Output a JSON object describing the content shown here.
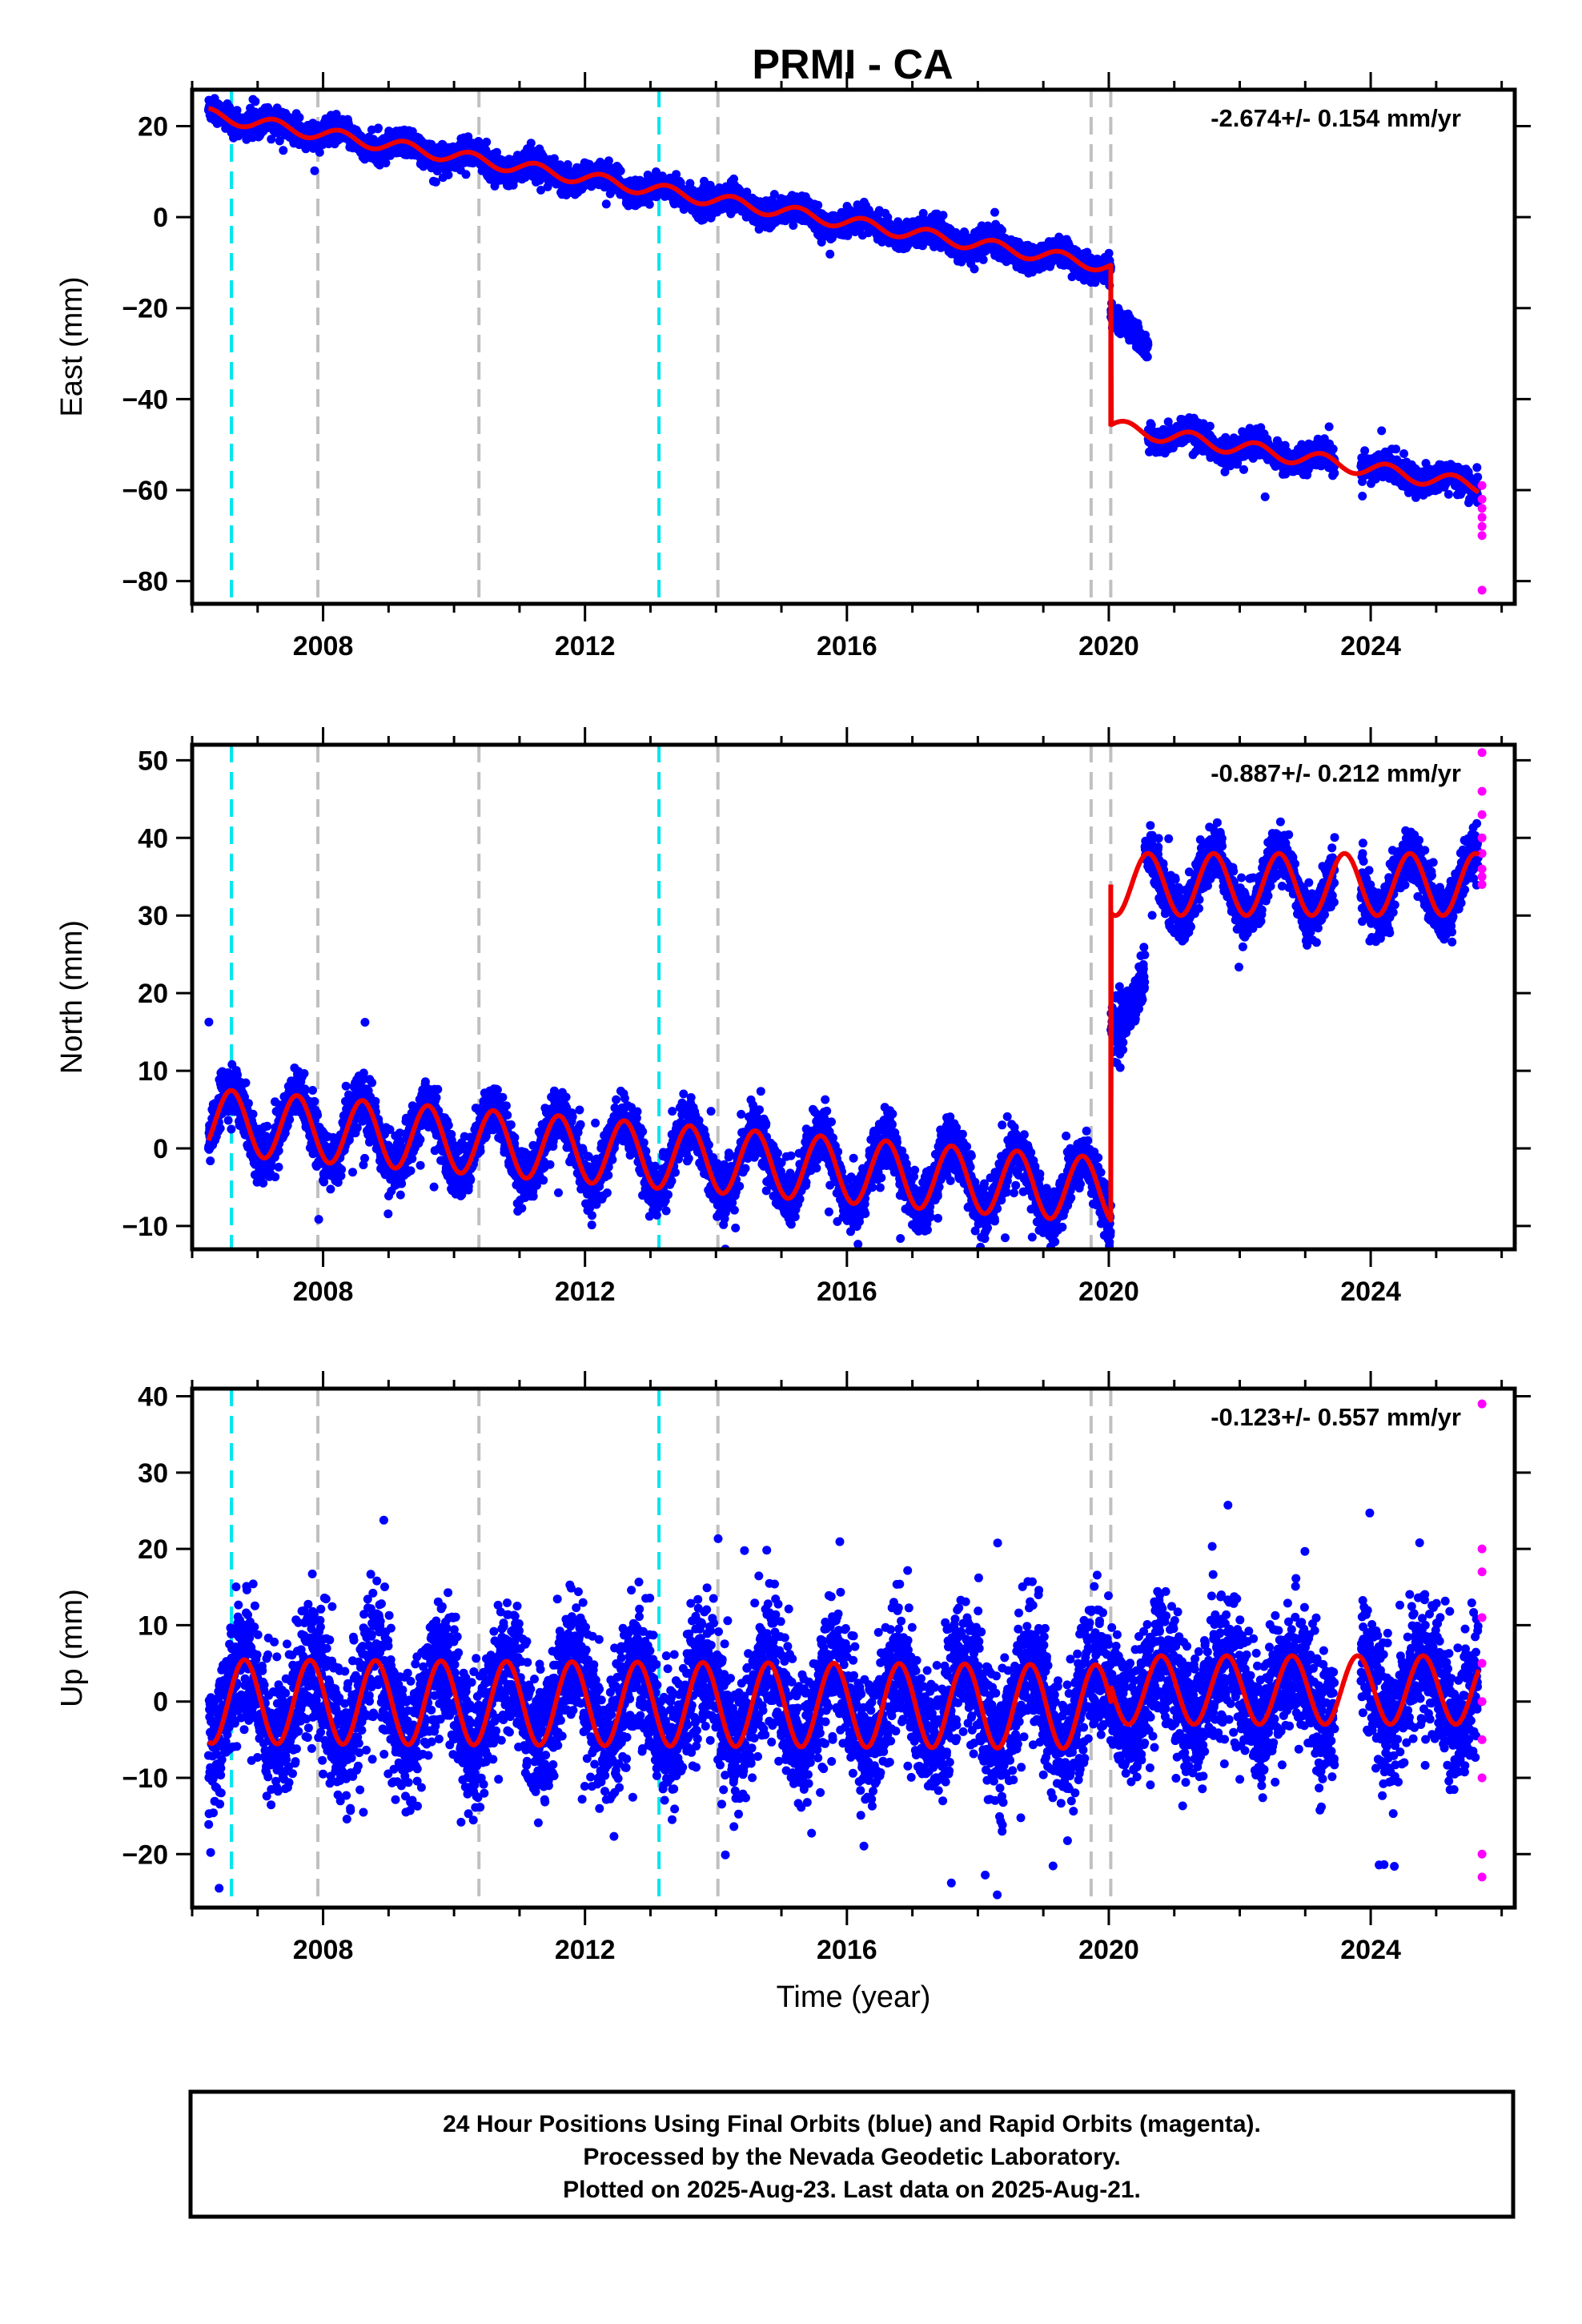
{
  "title": "PRMI - CA",
  "footer": {
    "line1": "24 Hour Positions Using Final Orbits (blue) and Rapid Orbits (magenta).",
    "line2": "Processed by the Nevada Geodetic Laboratory.",
    "line3": "Plotted on 2025-Aug-23. Last data on 2025-Aug-21."
  },
  "colors": {
    "final": "#0000ff",
    "rapid": "#ff00ff",
    "model": "#ee0000",
    "event_cyan": "#00e5ee",
    "event_gray": "#c0c0c0"
  },
  "chart_data": [
    {
      "type": "scatter",
      "component": "East",
      "ylabel": "East (mm)",
      "xlabel": "",
      "xlim": [
        2006.0,
        2026.2
      ],
      "ylim": [
        -85,
        28
      ],
      "xticks": [
        2008,
        2012,
        2016,
        2020,
        2024
      ],
      "yticks": [
        -80,
        -60,
        -40,
        -20,
        0,
        20
      ],
      "rate": "-2.674+/- 0.154 mm/yr",
      "grid": false,
      "cyan_events": [
        2006.6,
        2013.13
      ],
      "gray_events": [
        2007.92,
        2010.38,
        2014.03,
        2019.73,
        2020.03
      ],
      "data_start": 2006.25,
      "data_end": 2025.64,
      "gaps": [
        [
          2023.45,
          2023.85
        ]
      ],
      "segments": [
        {
          "t0": 2006.25,
          "t1": 2020.03,
          "y0": 22.5,
          "slope": -2.42,
          "amp": 1.4,
          "phase": 0.0
        },
        {
          "t0": 2020.03,
          "t1": 2025.64,
          "y0": -46.0,
          "slope": -2.35,
          "amp": 1.6,
          "phase": 0.0
        }
      ],
      "offsets": [
        {
          "t": 2020.03,
          "from": -11.0,
          "to": -46.0
        }
      ],
      "transients": [
        {
          "t0": 2020.03,
          "t1": 2020.6,
          "level": -21.0
        }
      ],
      "scatter_sd": 1.3,
      "model_name": "",
      "rapid": [
        -59,
        -62,
        -64,
        -66,
        -68,
        -70,
        -82
      ]
    },
    {
      "type": "scatter",
      "component": "North",
      "ylabel": "North (mm)",
      "xlabel": "",
      "xlim": [
        2006.0,
        2026.2
      ],
      "ylim": [
        -13,
        52
      ],
      "xticks": [
        2008,
        2012,
        2016,
        2020,
        2024
      ],
      "yticks": [
        -10,
        0,
        10,
        20,
        30,
        40,
        50
      ],
      "rate": "-0.887+/- 0.212 mm/yr",
      "grid": false,
      "cyan_events": [
        2006.6,
        2013.13
      ],
      "gray_events": [
        2007.92,
        2010.38,
        2014.03,
        2019.73,
        2020.03
      ],
      "data_start": 2006.25,
      "data_end": 2025.64,
      "gaps": [
        [
          2023.45,
          2023.85
        ]
      ],
      "segments": [
        {
          "t0": 2006.25,
          "t1": 2020.03,
          "y0": 3.5,
          "slope": -0.65,
          "amp": 4.2,
          "phase": 0.35
        },
        {
          "t0": 2020.03,
          "t1": 2025.64,
          "y0": 34.0,
          "slope": 0.0,
          "amp": 4.0,
          "phase": 0.35
        }
      ],
      "offsets": [
        {
          "t": 2020.03,
          "from": -6.0,
          "to": 34.0
        }
      ],
      "transients": [
        {
          "t0": 2020.03,
          "t1": 2020.55,
          "level": 15.0
        }
      ],
      "scatter_sd": 1.6,
      "model_name": "",
      "rapid": [
        51,
        46,
        43,
        40,
        38,
        36,
        35,
        34
      ]
    },
    {
      "type": "scatter",
      "component": "Up",
      "ylabel": "Up (mm)",
      "xlabel": "Time (year)",
      "xlim": [
        2006.0,
        2026.2
      ],
      "ylim": [
        -27,
        41
      ],
      "xticks": [
        2008,
        2012,
        2016,
        2020,
        2024
      ],
      "yticks": [
        -20,
        -10,
        0,
        10,
        20,
        30,
        40
      ],
      "rate": "-0.123+/- 0.557 mm/yr",
      "grid": false,
      "cyan_events": [
        2006.6,
        2013.13
      ],
      "gray_events": [
        2007.92,
        2010.38,
        2014.03,
        2019.73,
        2020.03
      ],
      "data_start": 2006.25,
      "data_end": 2025.64,
      "gaps": [
        [
          2023.45,
          2023.85
        ]
      ],
      "segments": [
        {
          "t0": 2006.25,
          "t1": 2020.03,
          "y0": 0.0,
          "slope": -0.05,
          "amp": 5.5,
          "phase": 0.55
        },
        {
          "t0": 2020.03,
          "t1": 2025.64,
          "y0": 1.5,
          "slope": 0.0,
          "amp": 4.5,
          "phase": 0.55
        }
      ],
      "offsets": [],
      "transients": [],
      "scatter_sd": 4.2,
      "model_name": "",
      "rapid": [
        39,
        20,
        17,
        11,
        5,
        0,
        -5,
        -10,
        -20,
        -23
      ]
    }
  ]
}
